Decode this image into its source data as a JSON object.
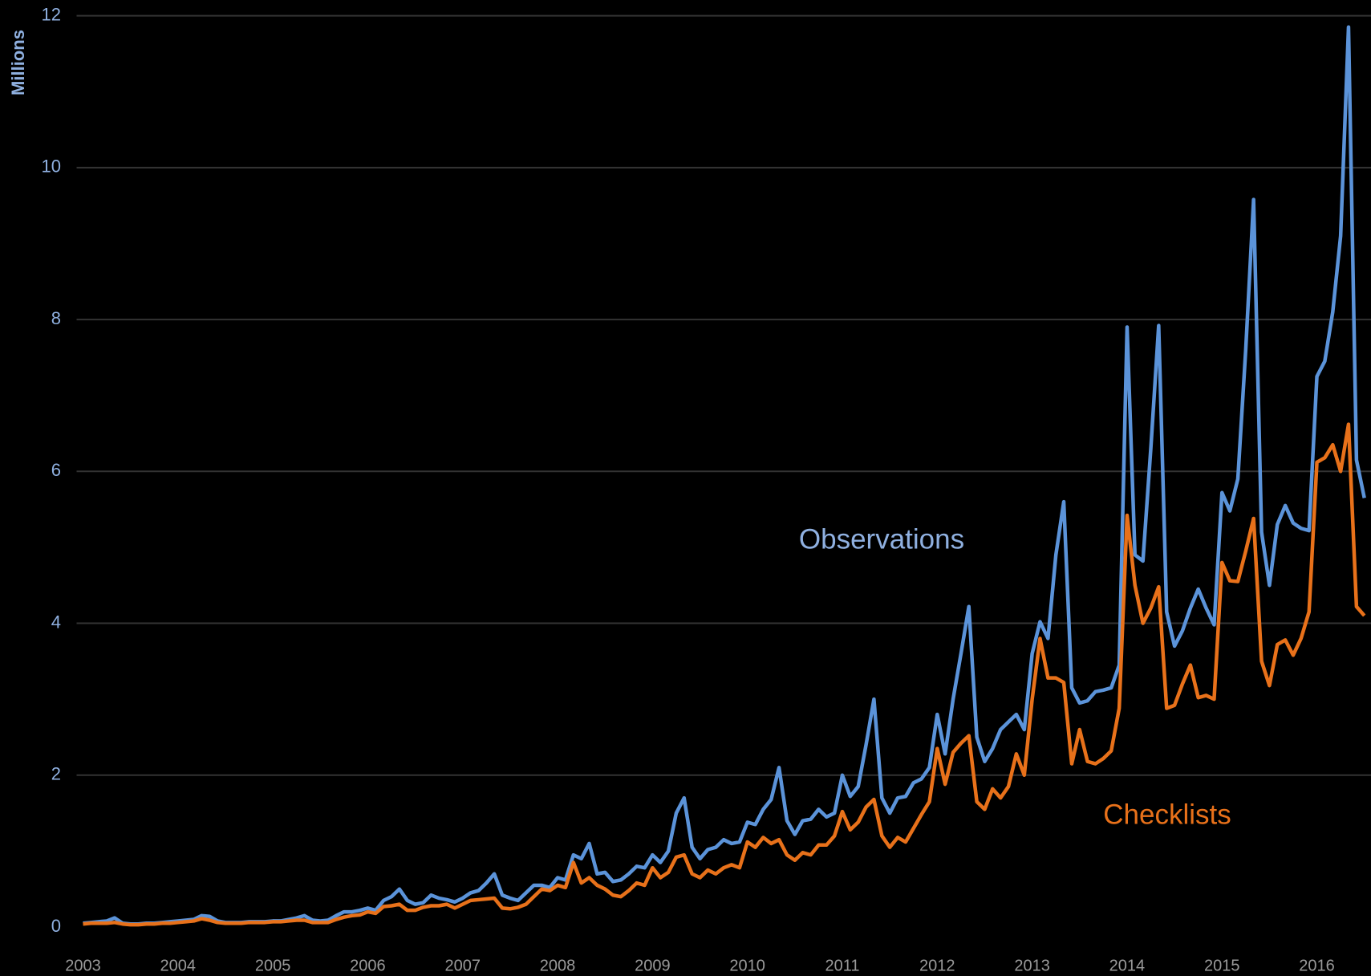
{
  "chart_data": {
    "type": "line",
    "y_label": "Millions",
    "annotations": [
      "Observations",
      "Checklists"
    ],
    "x": [
      2003,
      2003.083,
      2003.167,
      2003.25,
      2003.333,
      2003.417,
      2003.5,
      2003.583,
      2003.667,
      2003.75,
      2003.833,
      2003.917,
      2004,
      2004.083,
      2004.167,
      2004.25,
      2004.333,
      2004.417,
      2004.5,
      2004.583,
      2004.667,
      2004.75,
      2004.833,
      2004.917,
      2005,
      2005.083,
      2005.167,
      2005.25,
      2005.333,
      2005.417,
      2005.5,
      2005.583,
      2005.667,
      2005.75,
      2005.833,
      2005.917,
      2006,
      2006.083,
      2006.167,
      2006.25,
      2006.333,
      2006.417,
      2006.5,
      2006.583,
      2006.667,
      2006.75,
      2006.833,
      2006.917,
      2007,
      2007.083,
      2007.167,
      2007.25,
      2007.333,
      2007.417,
      2007.5,
      2007.583,
      2007.667,
      2007.75,
      2007.833,
      2007.917,
      2008,
      2008.083,
      2008.167,
      2008.25,
      2008.333,
      2008.417,
      2008.5,
      2008.583,
      2008.667,
      2008.75,
      2008.833,
      2008.917,
      2009,
      2009.083,
      2009.167,
      2009.25,
      2009.333,
      2009.417,
      2009.5,
      2009.583,
      2009.667,
      2009.75,
      2009.833,
      2009.917,
      2010,
      2010.083,
      2010.167,
      2010.25,
      2010.333,
      2010.417,
      2010.5,
      2010.583,
      2010.667,
      2010.75,
      2010.833,
      2010.917,
      2011,
      2011.083,
      2011.167,
      2011.25,
      2011.333,
      2011.417,
      2011.5,
      2011.583,
      2011.667,
      2011.75,
      2011.833,
      2011.917,
      2012,
      2012.083,
      2012.167,
      2012.25,
      2012.333,
      2012.417,
      2012.5,
      2012.583,
      2012.667,
      2012.75,
      2012.833,
      2012.917,
      2013,
      2013.083,
      2013.167,
      2013.25,
      2013.333,
      2013.417,
      2013.5,
      2013.583,
      2013.667,
      2013.75,
      2013.833,
      2013.917,
      2014,
      2014.083,
      2014.167,
      2014.25,
      2014.333,
      2014.417,
      2014.5,
      2014.583,
      2014.667,
      2014.75,
      2014.833,
      2014.917,
      2015,
      2015.083,
      2015.167,
      2015.25,
      2015.333,
      2015.417,
      2015.5,
      2015.583,
      2015.667,
      2015.75,
      2015.833,
      2015.917,
      2016,
      2016.083,
      2016.167,
      2016.25,
      2016.333,
      2016.417,
      2016.5
    ],
    "series": [
      {
        "name": "Observations",
        "color": "#5b93d9",
        "values": [
          0.05,
          0.06,
          0.07,
          0.08,
          0.12,
          0.05,
          0.04,
          0.04,
          0.05,
          0.05,
          0.06,
          0.07,
          0.08,
          0.09,
          0.1,
          0.15,
          0.14,
          0.08,
          0.06,
          0.06,
          0.06,
          0.07,
          0.07,
          0.07,
          0.08,
          0.08,
          0.1,
          0.12,
          0.15,
          0.09,
          0.08,
          0.09,
          0.15,
          0.2,
          0.2,
          0.22,
          0.25,
          0.22,
          0.35,
          0.4,
          0.5,
          0.35,
          0.3,
          0.32,
          0.42,
          0.38,
          0.36,
          0.33,
          0.38,
          0.45,
          0.48,
          0.58,
          0.7,
          0.42,
          0.38,
          0.35,
          0.45,
          0.55,
          0.55,
          0.52,
          0.65,
          0.62,
          0.95,
          0.9,
          1.1,
          0.7,
          0.72,
          0.6,
          0.62,
          0.7,
          0.8,
          0.78,
          0.95,
          0.85,
          1.0,
          1.5,
          1.7,
          1.05,
          0.9,
          1.02,
          1.05,
          1.15,
          1.1,
          1.12,
          1.38,
          1.35,
          1.55,
          1.68,
          2.1,
          1.4,
          1.22,
          1.4,
          1.42,
          1.55,
          1.45,
          1.5,
          2.0,
          1.72,
          1.85,
          2.4,
          3.0,
          1.7,
          1.5,
          1.7,
          1.72,
          1.9,
          1.95,
          2.1,
          2.8,
          2.28,
          3.0,
          3.6,
          4.22,
          2.5,
          2.18,
          2.35,
          2.6,
          2.7,
          2.8,
          2.6,
          3.6,
          4.02,
          3.8,
          4.9,
          5.6,
          3.15,
          2.95,
          2.98,
          3.1,
          3.12,
          3.15,
          3.45,
          7.9,
          4.9,
          4.82,
          6.3,
          7.92,
          4.15,
          3.7,
          3.9,
          4.2,
          4.45,
          4.2,
          3.98,
          5.72,
          5.48,
          5.9,
          7.6,
          9.58,
          5.2,
          4.5,
          5.3,
          5.55,
          5.32,
          5.25,
          5.22,
          7.25,
          7.45,
          8.1,
          9.1,
          11.85,
          6.15,
          5.65
        ]
      },
      {
        "name": "Checklists",
        "color": "#e8711a",
        "values": [
          0.04,
          0.05,
          0.05,
          0.05,
          0.06,
          0.04,
          0.03,
          0.03,
          0.04,
          0.04,
          0.05,
          0.05,
          0.06,
          0.07,
          0.08,
          0.11,
          0.09,
          0.06,
          0.05,
          0.05,
          0.05,
          0.06,
          0.06,
          0.06,
          0.07,
          0.07,
          0.08,
          0.09,
          0.09,
          0.06,
          0.06,
          0.06,
          0.1,
          0.13,
          0.15,
          0.16,
          0.2,
          0.18,
          0.27,
          0.28,
          0.3,
          0.22,
          0.22,
          0.26,
          0.28,
          0.28,
          0.3,
          0.25,
          0.3,
          0.35,
          0.36,
          0.37,
          0.38,
          0.25,
          0.24,
          0.26,
          0.3,
          0.4,
          0.5,
          0.48,
          0.55,
          0.52,
          0.85,
          0.58,
          0.65,
          0.55,
          0.5,
          0.42,
          0.4,
          0.48,
          0.58,
          0.55,
          0.78,
          0.65,
          0.72,
          0.92,
          0.95,
          0.7,
          0.65,
          0.75,
          0.7,
          0.78,
          0.82,
          0.78,
          1.12,
          1.05,
          1.18,
          1.1,
          1.15,
          0.95,
          0.88,
          0.98,
          0.95,
          1.08,
          1.08,
          1.2,
          1.52,
          1.28,
          1.38,
          1.58,
          1.68,
          1.2,
          1.05,
          1.18,
          1.12,
          1.3,
          1.48,
          1.65,
          2.35,
          1.88,
          2.3,
          2.42,
          2.52,
          1.65,
          1.55,
          1.82,
          1.7,
          1.85,
          2.28,
          2.0,
          3.0,
          3.8,
          3.28,
          3.28,
          3.22,
          2.15,
          2.6,
          2.18,
          2.15,
          2.22,
          2.32,
          2.88,
          5.42,
          4.5,
          4.0,
          4.2,
          4.48,
          2.88,
          2.92,
          3.2,
          3.45,
          3.02,
          3.05,
          3.0,
          4.8,
          4.56,
          4.55,
          4.95,
          5.38,
          3.5,
          3.18,
          3.72,
          3.78,
          3.58,
          3.8,
          4.15,
          6.12,
          6.18,
          6.35,
          6.0,
          6.62,
          4.22,
          4.1
        ]
      }
    ],
    "xlim": [
      2003,
      2016.57
    ],
    "xticks": [
      2003,
      2004,
      2005,
      2006,
      2007,
      2008,
      2009,
      2010,
      2011,
      2012,
      2013,
      2014,
      2015,
      2016
    ],
    "ylim": [
      0,
      12
    ],
    "yticks": [
      0,
      2,
      4,
      6,
      8,
      10,
      12
    ],
    "grid": true,
    "legend": false
  }
}
